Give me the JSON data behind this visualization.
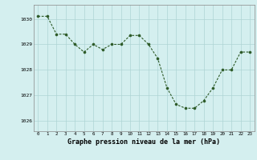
{
  "x": [
    0,
    1,
    2,
    3,
    4,
    5,
    6,
    7,
    8,
    9,
    10,
    11,
    12,
    13,
    14,
    15,
    16,
    17,
    18,
    19,
    20,
    21,
    22,
    23
  ],
  "y": [
    1030.1,
    1030.1,
    1029.4,
    1029.4,
    1029.0,
    1028.7,
    1029.0,
    1028.8,
    1029.0,
    1029.0,
    1029.35,
    1029.35,
    1029.0,
    1028.45,
    1027.3,
    1026.65,
    1026.5,
    1026.5,
    1026.8,
    1027.3,
    1028.0,
    1028.0,
    1028.7,
    1028.7
  ],
  "line_color": "#2d5a27",
  "marker_color": "#2d5a27",
  "bg_color": "#d4efef",
  "grid_color": "#aed4d4",
  "xlabel": "Graphe pression niveau de la mer (hPa)",
  "xlabel_fontsize": 6.0,
  "tick_labels": [
    "0",
    "1",
    "2",
    "3",
    "4",
    "5",
    "6",
    "7",
    "8",
    "9",
    "10",
    "11",
    "12",
    "13",
    "14",
    "15",
    "16",
    "17",
    "18",
    "19",
    "20",
    "21",
    "22",
    "23"
  ],
  "yticks": [
    1026,
    1027,
    1028,
    1029,
    1030
  ],
  "ylim": [
    1025.6,
    1030.55
  ],
  "xlim": [
    -0.5,
    23.5
  ]
}
